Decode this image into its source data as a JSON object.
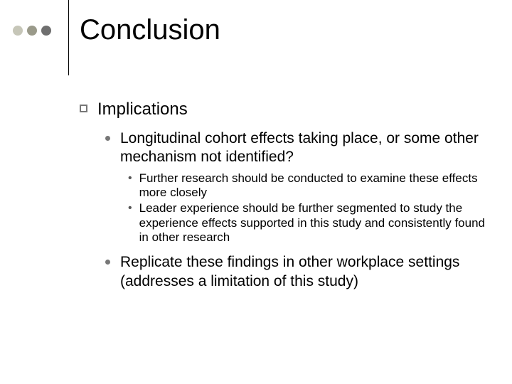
{
  "decor": {
    "dot_colors": [
      "#c6c6b8",
      "#9a9a8a",
      "#6f6f6f"
    ],
    "dot_size": 14,
    "vline_color": "#000000"
  },
  "title": "Conclusion",
  "title_fontsize": 40,
  "l1": {
    "text": "Implications",
    "fontsize": 24,
    "bullet_border": "#777777"
  },
  "l2_bullet_color": "#777777",
  "l2_fontsize": 21,
  "l3_fontsize": 17,
  "items": [
    {
      "text": "Longitudinal cohort effects taking place, or some other mechanism not identified?",
      "sub": [
        "Further research should be conducted to examine these effects more closely",
        "Leader experience should be further segmented to study the experience effects supported in this study and consistently found in other research"
      ]
    },
    {
      "text": "Replicate these findings in other workplace settings (addresses a limitation of this study)",
      "sub": []
    }
  ]
}
